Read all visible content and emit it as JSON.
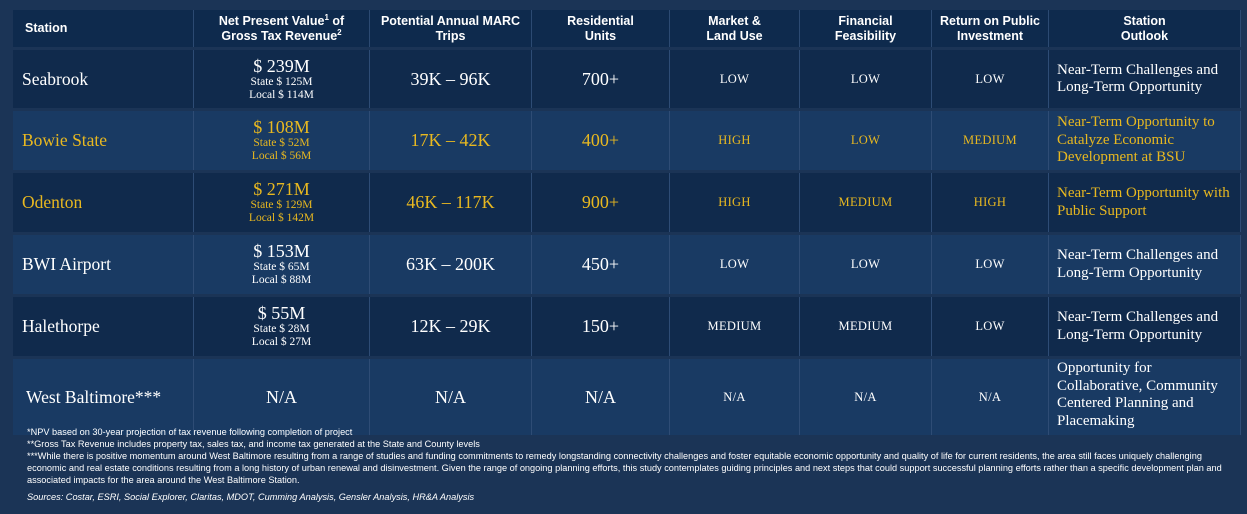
{
  "headers": {
    "station": "Station",
    "npv": "Net Present Value",
    "npv_sup1": "1",
    "npv_of": " of",
    "npv_line2": "Gross Tax Revenue",
    "npv_sup2": "2",
    "trips_line1": "Potential Annual MARC",
    "trips_line2": "Trips",
    "units_line1": "Residential",
    "units_line2": "Units",
    "market_line1": "Market &",
    "market_line2": "Land Use",
    "financial_line1": "Financial",
    "financial_line2": "Feasibility",
    "return_line1": "Return on Public",
    "return_line2": "Investment",
    "outlook_line1": "Station",
    "outlook_line2": "Outlook"
  },
  "rows": [
    {
      "station": "Seabrook",
      "npv": "$ 239M",
      "state": "State $ 125M",
      "local": "Local $ 114M",
      "trips": "39K – 96K",
      "units": "700+",
      "market": "LOW",
      "financial": "LOW",
      "return": "LOW",
      "outlook": "Near-Term Challenges and Long-Term Opportunity"
    },
    {
      "station": "Bowie State",
      "npv": "$ 108M",
      "state": "State $ 52M",
      "local": "Local $ 56M",
      "trips": "17K – 42K",
      "units": "400+",
      "market": "HIGH",
      "financial": "LOW",
      "return": "MEDIUM",
      "outlook": "Near-Term Opportunity to Catalyze Economic Development at BSU"
    },
    {
      "station": "Odenton",
      "npv": "$ 271M",
      "state": "State $ 129M",
      "local": "Local $ 142M",
      "trips": "46K – 117K",
      "units": "900+",
      "market": "HIGH",
      "financial": "MEDIUM",
      "return": "HIGH",
      "outlook": "Near-Term Opportunity with Public Support"
    },
    {
      "station": "BWI Airport",
      "npv": "$ 153M",
      "state": "State $ 65M",
      "local": "Local $ 88M",
      "trips": "63K – 200K",
      "units": "450+",
      "market": "LOW",
      "financial": "LOW",
      "return": "LOW",
      "outlook": "Near-Term Challenges and Long-Term Opportunity"
    },
    {
      "station": "Halethorpe",
      "npv": "$ 55M",
      "state": "State $ 28M",
      "local": "Local $ 27M",
      "trips": "12K – 29K",
      "units": "150+",
      "market": "MEDIUM",
      "financial": "MEDIUM",
      "return": "LOW",
      "outlook": "Near-Term Challenges and Long-Term Opportunity"
    },
    {
      "station": "West Baltimore***",
      "npv": "N/A",
      "trips": "N/A",
      "units": "N/A",
      "market": "N/A",
      "financial": "N/A",
      "return": "N/A",
      "outlook": "Opportunity for Collaborative, Community Centered Planning and Placemaking"
    }
  ],
  "footnotes": {
    "note1": "*NPV based on 30-year projection of tax revenue following completion of project",
    "note2": "**Gross Tax Revenue includes property tax, sales tax, and income tax generated at the State and County levels",
    "note3": "***While there is positive momentum around West Baltimore resulting from a range of studies and funding commitments to remedy longstanding connectivity challenges and foster equitable economic opportunity and quality of life for current residents, the area still faces uniquely challenging economic and real estate conditions resulting from a long history of urban renewal and disinvestment. Given the range of ongoing planning efforts, this study contemplates guiding principles and next steps that could support successful planning efforts rather than a specific development plan and associated impacts for the area around the West Baltimore Station.",
    "sources": "Sources: Costar, ESRI, Social Explorer, Claritas, MDOT, Cumming Analysis, Gensler Analysis, HR&A Analysis"
  },
  "colors": {
    "background": "#1b3456",
    "header": "#0e2a4d",
    "row_dark": "#102a4c",
    "row_light": "#193a63",
    "highlight": "#e8b820",
    "text": "#ffffff"
  }
}
